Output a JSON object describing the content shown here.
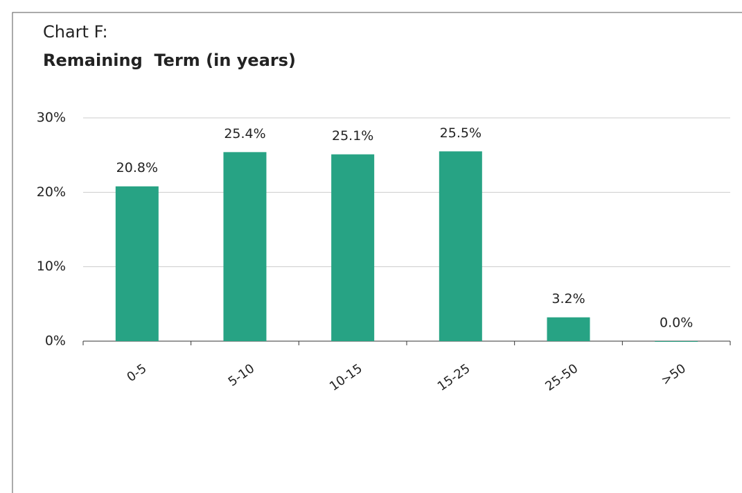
{
  "chart_data": {
    "type": "bar",
    "title": "Chart F:",
    "subtitle": "Remaining  Term (in years)",
    "categories": [
      "0-5",
      "5-10",
      "10-15",
      "15-25",
      "25-50",
      ">50"
    ],
    "values": [
      20.8,
      25.4,
      25.1,
      25.5,
      3.2,
      0.0
    ],
    "value_labels": [
      "20.8%",
      "25.4%",
      "25.1%",
      "25.5%",
      "3.2%",
      "0.0%"
    ],
    "color": "#27a384",
    "ylim": [
      0,
      30
    ],
    "yticks": [
      {
        "value": 0,
        "label": "0%"
      },
      {
        "value": 10,
        "label": "10%"
      },
      {
        "value": 20,
        "label": "20%"
      },
      {
        "value": 30,
        "label": "30%"
      }
    ],
    "grid": true
  }
}
